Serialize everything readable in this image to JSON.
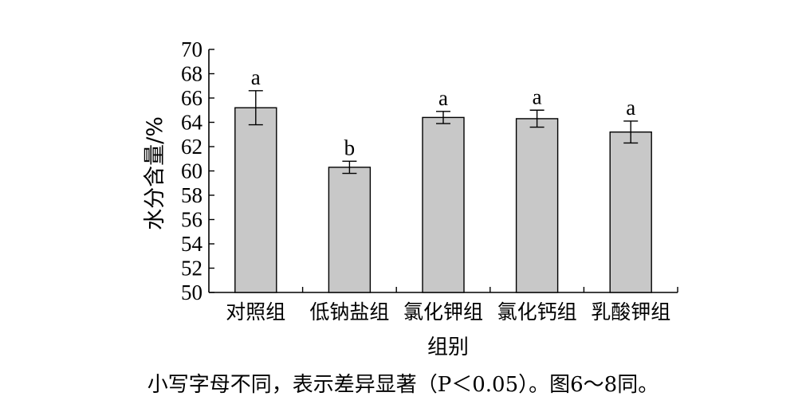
{
  "chart_data": {
    "type": "bar",
    "categories": [
      "对照组",
      "低钠盐组",
      "氯化钾组",
      "氯化钙组",
      "乳酸钾组"
    ],
    "values": [
      65.2,
      60.3,
      64.4,
      64.3,
      63.2
    ],
    "errors": [
      1.4,
      0.5,
      0.5,
      0.7,
      0.9
    ],
    "significance_labels": [
      "a",
      "b",
      "a",
      "a",
      "a"
    ],
    "xlabel": "组别",
    "ylabel": "水分含量/%",
    "ylim": [
      50,
      70
    ],
    "yticks": [
      "50",
      "52",
      "54",
      "56",
      "58",
      "60",
      "62",
      "64",
      "66",
      "68",
      "70"
    ],
    "grid": false,
    "bar_color": "#c8c8c8",
    "bar_edge_color": "#000000"
  },
  "caption": "小写字母不同，表示差异显著（P＜0.05）。图6～8同。"
}
